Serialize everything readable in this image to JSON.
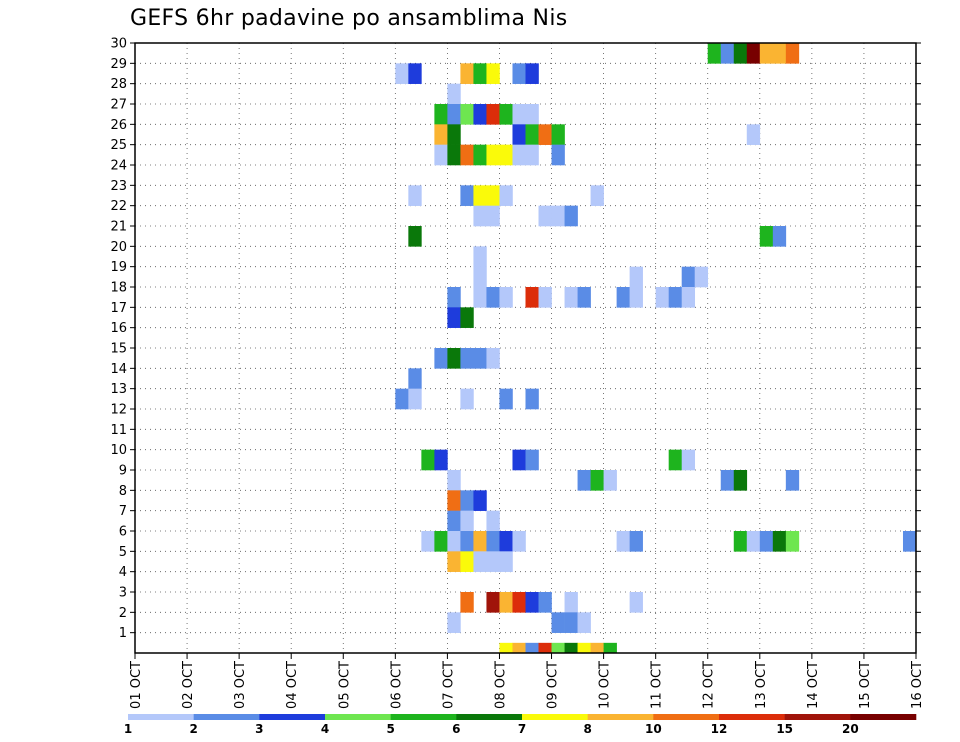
{
  "chart_data": {
    "type": "heatmap",
    "title": "GEFS 6hr padavine po ansamblima Nis",
    "x_tick_labels": [
      "01 OCT",
      "02 OCT",
      "03 OCT",
      "04 OCT",
      "05 OCT",
      "06 OCT",
      "07 OCT",
      "08 OCT",
      "09 OCT",
      "10 OCT",
      "11 OCT",
      "12 OCT",
      "13 OCT",
      "14 OCT",
      "15 OCT",
      "16 OCT"
    ],
    "y_tick_labels": [
      "1",
      "2",
      "3",
      "4",
      "5",
      "6",
      "7",
      "8",
      "9",
      "10",
      "11",
      "12",
      "13",
      "14",
      "15",
      "16",
      "17",
      "18",
      "19",
      "20",
      "21",
      "22",
      "23",
      "24",
      "25",
      "26",
      "27",
      "28",
      "29",
      "30"
    ],
    "x_range": [
      "01 OCT",
      "16 OCT"
    ],
    "y_range": [
      0,
      30
    ],
    "time_step_hours": 6,
    "grid": "dotted",
    "legend_position": "bottom",
    "legend": {
      "labels": [
        "1",
        "2",
        "3",
        "4",
        "5",
        "6",
        "7",
        "8",
        "10",
        "12",
        "15",
        "20"
      ],
      "colors": [
        "#b4c8fa",
        "#5a8ce6",
        "#1e3cdc",
        "#6ee650",
        "#1eb41e",
        "#0a780a",
        "#fafa0a",
        "#fab432",
        "#f06e14",
        "#dc2d0a",
        "#a0140a",
        "#780000"
      ]
    },
    "cells": [
      {
        "member": 29,
        "slot": 44,
        "level": 5
      },
      {
        "member": 29,
        "slot": 45,
        "level": 2
      },
      {
        "member": 29,
        "slot": 46,
        "level": 6
      },
      {
        "member": 29,
        "slot": 47,
        "level": 12
      },
      {
        "member": 29,
        "slot": 48,
        "level": 8
      },
      {
        "member": 29,
        "slot": 49,
        "level": 8
      },
      {
        "member": 29,
        "slot": 50,
        "level": 9
      },
      {
        "member": 28,
        "slot": 20,
        "level": 1
      },
      {
        "member": 28,
        "slot": 21,
        "level": 3
      },
      {
        "member": 28,
        "slot": 25,
        "level": 8
      },
      {
        "member": 28,
        "slot": 26,
        "level": 5
      },
      {
        "member": 28,
        "slot": 27,
        "level": 7
      },
      {
        "member": 28,
        "slot": 29,
        "level": 2
      },
      {
        "member": 28,
        "slot": 30,
        "level": 3
      },
      {
        "member": 27,
        "slot": 24,
        "level": 1
      },
      {
        "member": 26,
        "slot": 23,
        "level": 5
      },
      {
        "member": 26,
        "slot": 24,
        "level": 2
      },
      {
        "member": 26,
        "slot": 25,
        "level": 4
      },
      {
        "member": 26,
        "slot": 26,
        "level": 3
      },
      {
        "member": 26,
        "slot": 27,
        "level": 10
      },
      {
        "member": 26,
        "slot": 28,
        "level": 5
      },
      {
        "member": 26,
        "slot": 29,
        "level": 1
      },
      {
        "member": 26,
        "slot": 30,
        "level": 1
      },
      {
        "member": 25,
        "slot": 23,
        "level": 8
      },
      {
        "member": 25,
        "slot": 24,
        "level": 6
      },
      {
        "member": 25,
        "slot": 29,
        "level": 3
      },
      {
        "member": 25,
        "slot": 30,
        "level": 5
      },
      {
        "member": 25,
        "slot": 31,
        "level": 9
      },
      {
        "member": 25,
        "slot": 32,
        "level": 5
      },
      {
        "member": 25,
        "slot": 47,
        "level": 1
      },
      {
        "member": 24,
        "slot": 23,
        "level": 1
      },
      {
        "member": 24,
        "slot": 24,
        "level": 6
      },
      {
        "member": 24,
        "slot": 25,
        "level": 9
      },
      {
        "member": 24,
        "slot": 26,
        "level": 5
      },
      {
        "member": 24,
        "slot": 27,
        "level": 7
      },
      {
        "member": 24,
        "slot": 28,
        "level": 7
      },
      {
        "member": 24,
        "slot": 29,
        "level": 1
      },
      {
        "member": 24,
        "slot": 30,
        "level": 1
      },
      {
        "member": 24,
        "slot": 32,
        "level": 2
      },
      {
        "member": 22,
        "slot": 21,
        "level": 1
      },
      {
        "member": 22,
        "slot": 25,
        "level": 2
      },
      {
        "member": 22,
        "slot": 26,
        "level": 7
      },
      {
        "member": 22,
        "slot": 27,
        "level": 7
      },
      {
        "member": 22,
        "slot": 28,
        "level": 1
      },
      {
        "member": 22,
        "slot": 35,
        "level": 1
      },
      {
        "member": 21,
        "slot": 26,
        "level": 1
      },
      {
        "member": 21,
        "slot": 27,
        "level": 1
      },
      {
        "member": 21,
        "slot": 31,
        "level": 1
      },
      {
        "member": 21,
        "slot": 32,
        "level": 1
      },
      {
        "member": 21,
        "slot": 33,
        "level": 2
      },
      {
        "member": 20,
        "slot": 21,
        "level": 6
      },
      {
        "member": 20,
        "slot": 48,
        "level": 5
      },
      {
        "member": 20,
        "slot": 49,
        "level": 2
      },
      {
        "member": 19,
        "slot": 26,
        "level": 1
      },
      {
        "member": 18,
        "slot": 26,
        "level": 1
      },
      {
        "member": 18,
        "slot": 38,
        "level": 1
      },
      {
        "member": 18,
        "slot": 42,
        "level": 2
      },
      {
        "member": 18,
        "slot": 43,
        "level": 1
      },
      {
        "member": 17,
        "slot": 24,
        "level": 2
      },
      {
        "member": 17,
        "slot": 26,
        "level": 1
      },
      {
        "member": 17,
        "slot": 27,
        "level": 2
      },
      {
        "member": 17,
        "slot": 28,
        "level": 1
      },
      {
        "member": 17,
        "slot": 30,
        "level": 10
      },
      {
        "member": 17,
        "slot": 31,
        "level": 1
      },
      {
        "member": 17,
        "slot": 33,
        "level": 1
      },
      {
        "member": 17,
        "slot": 34,
        "level": 2
      },
      {
        "member": 17,
        "slot": 37,
        "level": 2
      },
      {
        "member": 17,
        "slot": 38,
        "level": 1
      },
      {
        "member": 17,
        "slot": 40,
        "level": 1
      },
      {
        "member": 17,
        "slot": 41,
        "level": 2
      },
      {
        "member": 17,
        "slot": 42,
        "level": 1
      },
      {
        "member": 16,
        "slot": 24,
        "level": 3
      },
      {
        "member": 16,
        "slot": 25,
        "level": 6
      },
      {
        "member": 14,
        "slot": 23,
        "level": 2
      },
      {
        "member": 14,
        "slot": 24,
        "level": 6
      },
      {
        "member": 14,
        "slot": 25,
        "level": 2
      },
      {
        "member": 14,
        "slot": 26,
        "level": 2
      },
      {
        "member": 14,
        "slot": 27,
        "level": 1
      },
      {
        "member": 13,
        "slot": 21,
        "level": 2
      },
      {
        "member": 12,
        "slot": 20,
        "level": 2
      },
      {
        "member": 12,
        "slot": 21,
        "level": 1
      },
      {
        "member": 12,
        "slot": 25,
        "level": 1
      },
      {
        "member": 12,
        "slot": 28,
        "level": 2
      },
      {
        "member": 12,
        "slot": 30,
        "level": 2
      },
      {
        "member": 9,
        "slot": 22,
        "level": 5
      },
      {
        "member": 9,
        "slot": 23,
        "level": 3
      },
      {
        "member": 9,
        "slot": 29,
        "level": 3
      },
      {
        "member": 9,
        "slot": 30,
        "level": 2
      },
      {
        "member": 9,
        "slot": 41,
        "level": 5
      },
      {
        "member": 9,
        "slot": 42,
        "level": 1
      },
      {
        "member": 8,
        "slot": 24,
        "level": 1
      },
      {
        "member": 8,
        "slot": 34,
        "level": 2
      },
      {
        "member": 8,
        "slot": 35,
        "level": 5
      },
      {
        "member": 8,
        "slot": 36,
        "level": 1
      },
      {
        "member": 8,
        "slot": 45,
        "level": 2
      },
      {
        "member": 8,
        "slot": 46,
        "level": 6
      },
      {
        "member": 8,
        "slot": 50,
        "level": 2
      },
      {
        "member": 7,
        "slot": 24,
        "level": 9
      },
      {
        "member": 7,
        "slot": 25,
        "level": 2
      },
      {
        "member": 7,
        "slot": 26,
        "level": 3
      },
      {
        "member": 6,
        "slot": 24,
        "level": 2
      },
      {
        "member": 6,
        "slot": 25,
        "level": 1
      },
      {
        "member": 6,
        "slot": 27,
        "level": 1
      },
      {
        "member": 5,
        "slot": 22,
        "level": 1
      },
      {
        "member": 5,
        "slot": 23,
        "level": 5
      },
      {
        "member": 5,
        "slot": 24,
        "level": 1
      },
      {
        "member": 5,
        "slot": 25,
        "level": 2
      },
      {
        "member": 5,
        "slot": 26,
        "level": 8
      },
      {
        "member": 5,
        "slot": 27,
        "level": 2
      },
      {
        "member": 5,
        "slot": 28,
        "level": 3
      },
      {
        "member": 5,
        "slot": 29,
        "level": 1
      },
      {
        "member": 5,
        "slot": 37,
        "level": 1
      },
      {
        "member": 5,
        "slot": 38,
        "level": 2
      },
      {
        "member": 5,
        "slot": 46,
        "level": 5
      },
      {
        "member": 5,
        "slot": 47,
        "level": 1
      },
      {
        "member": 5,
        "slot": 48,
        "level": 2
      },
      {
        "member": 5,
        "slot": 49,
        "level": 6
      },
      {
        "member": 5,
        "slot": 50,
        "level": 4
      },
      {
        "member": 5,
        "slot": 59,
        "level": 2
      },
      {
        "member": 4,
        "slot": 24,
        "level": 8
      },
      {
        "member": 4,
        "slot": 25,
        "level": 7
      },
      {
        "member": 4,
        "slot": 26,
        "level": 1
      },
      {
        "member": 4,
        "slot": 27,
        "level": 1
      },
      {
        "member": 4,
        "slot": 28,
        "level": 1
      },
      {
        "member": 2,
        "slot": 25,
        "level": 9
      },
      {
        "member": 2,
        "slot": 27,
        "level": 11
      },
      {
        "member": 2,
        "slot": 28,
        "level": 8
      },
      {
        "member": 2,
        "slot": 29,
        "level": 10
      },
      {
        "member": 2,
        "slot": 30,
        "level": 3
      },
      {
        "member": 2,
        "slot": 31,
        "level": 2
      },
      {
        "member": 2,
        "slot": 33,
        "level": 1
      },
      {
        "member": 2,
        "slot": 38,
        "level": 1
      },
      {
        "member": 1,
        "slot": 24,
        "level": 1
      },
      {
        "member": 1,
        "slot": 32,
        "level": 2
      },
      {
        "member": 1,
        "slot": 33,
        "level": 2
      },
      {
        "member": 1,
        "slot": 34,
        "level": 1
      },
      {
        "member": 0,
        "slot": 28,
        "level": 7
      },
      {
        "member": 0,
        "slot": 29,
        "level": 8
      },
      {
        "member": 0,
        "slot": 30,
        "level": 2
      },
      {
        "member": 0,
        "slot": 31,
        "level": 10
      },
      {
        "member": 0,
        "slot": 32,
        "level": 4
      },
      {
        "member": 0,
        "slot": 33,
        "level": 6
      },
      {
        "member": 0,
        "slot": 34,
        "level": 7
      },
      {
        "member": 0,
        "slot": 35,
        "level": 8
      },
      {
        "member": 0,
        "slot": 36,
        "level": 5
      }
    ]
  }
}
